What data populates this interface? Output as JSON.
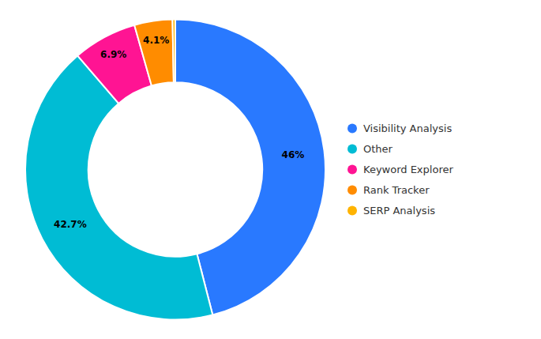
{
  "chart_data": {
    "type": "donut",
    "categories": [
      "Visibility Analysis",
      "Other",
      "Keyword Explorer",
      "Rank Tracker",
      "SERP Analysis"
    ],
    "values": [
      46.0,
      42.7,
      6.9,
      4.1,
      0.3
    ],
    "value_labels": [
      "46%",
      "42.7%",
      "6.9%",
      "4.1%",
      null
    ],
    "colors": [
      "#2979FF",
      "#00BCD4",
      "#FF1493",
      "#FF8C00",
      "#FFB300"
    ],
    "data_labels": true,
    "legend": "right"
  }
}
